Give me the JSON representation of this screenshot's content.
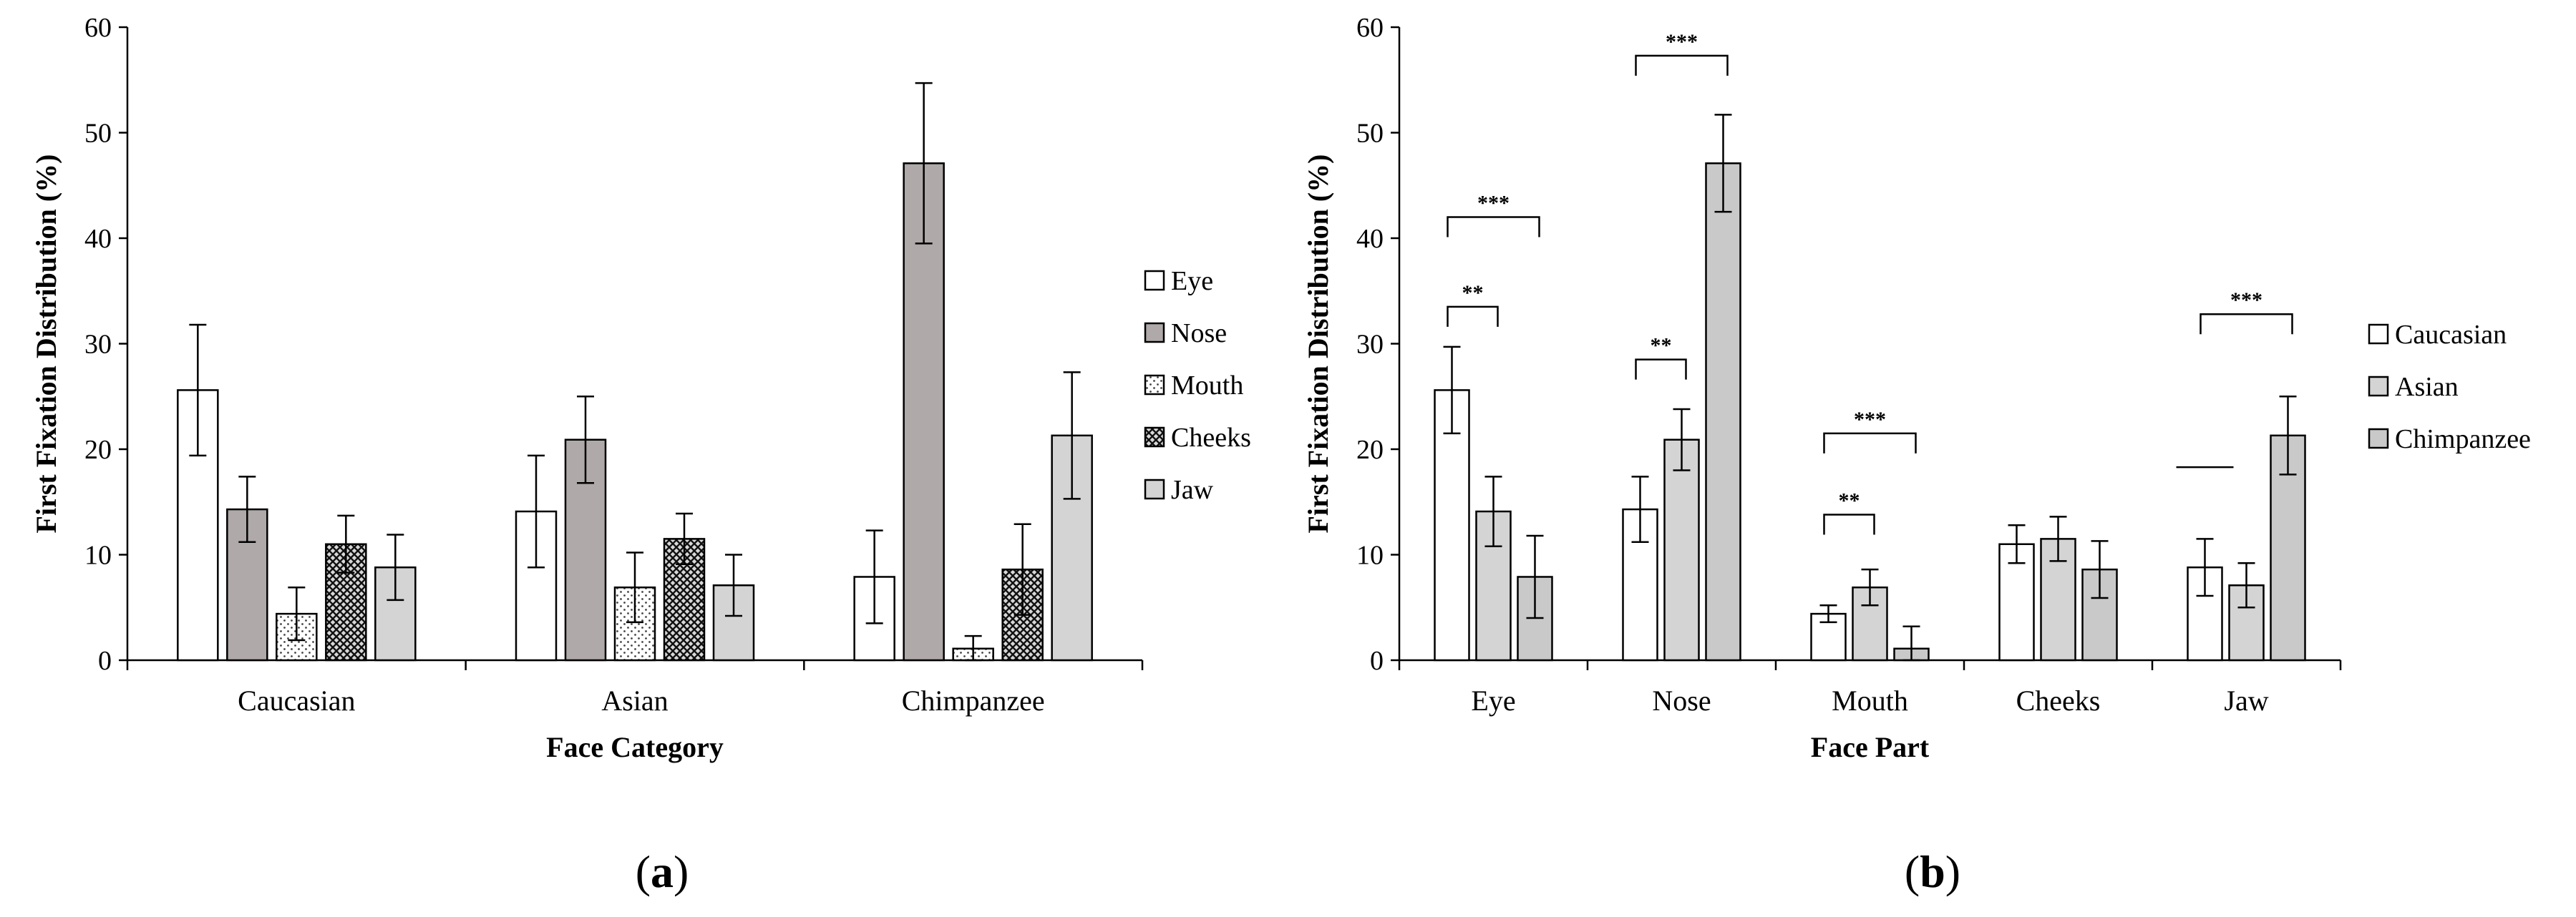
{
  "colors": {
    "white": "#ffffff",
    "dark_gray": "#afa9a9",
    "light_gray": "#d4d4d4",
    "mid_gray": "#c9c9c9",
    "black": "#000000"
  },
  "chart_data": [
    {
      "type": "bar",
      "panel_label": "a",
      "title": "",
      "xlabel": "Face Category",
      "ylabel": "First Fixation Distribution (%)",
      "ylim": [
        0,
        60
      ],
      "yticks": [
        "0",
        "10",
        "20",
        "30",
        "40",
        "50",
        "60"
      ],
      "categories": [
        "Caucasian",
        "Asian",
        "Chimpanzee"
      ],
      "legend_position": "right",
      "series": [
        {
          "name": "Eye",
          "pattern": "white",
          "values": [
            25.6,
            14.1,
            7.9
          ],
          "errors": [
            6.2,
            5.3,
            4.4
          ]
        },
        {
          "name": "Nose",
          "pattern": "dark_gray",
          "values": [
            14.3,
            20.9,
            47.1
          ],
          "errors": [
            3.1,
            4.1,
            7.6
          ]
        },
        {
          "name": "Mouth",
          "pattern": "dots",
          "values": [
            4.4,
            6.9,
            1.1
          ],
          "errors": [
            2.5,
            3.3,
            1.2
          ]
        },
        {
          "name": "Cheeks",
          "pattern": "crosshatch",
          "values": [
            11.0,
            11.5,
            8.6
          ],
          "errors": [
            2.7,
            2.4,
            4.3
          ]
        },
        {
          "name": "Jaw",
          "pattern": "light_gray",
          "values": [
            8.8,
            7.1,
            21.3
          ],
          "errors": [
            3.1,
            2.9,
            6.0
          ]
        }
      ]
    },
    {
      "type": "bar",
      "panel_label": "b",
      "title": "",
      "xlabel": "Face Part",
      "ylabel": "First Fixation Distribution (%)",
      "ylim": [
        0,
        60
      ],
      "yticks": [
        "0",
        "10",
        "20",
        "30",
        "40",
        "50",
        "60"
      ],
      "categories": [
        "Eye",
        "Nose",
        "Mouth",
        "Cheeks",
        "Jaw"
      ],
      "legend_position": "right",
      "series": [
        {
          "name": "Caucasian",
          "pattern": "white",
          "values": [
            25.6,
            14.3,
            4.4,
            11.0,
            8.8
          ],
          "errors": [
            4.1,
            3.1,
            0.8,
            1.8,
            2.7
          ]
        },
        {
          "name": "Asian",
          "pattern": "light_gray",
          "values": [
            14.1,
            20.9,
            6.9,
            11.5,
            7.1
          ],
          "errors": [
            3.3,
            2.9,
            1.7,
            2.1,
            2.1
          ]
        },
        {
          "name": "Chimpanzee",
          "pattern": "mid_gray",
          "values": [
            7.9,
            47.1,
            1.1,
            8.6,
            21.3
          ],
          "errors": [
            3.9,
            4.6,
            2.1,
            2.7,
            3.7
          ]
        }
      ],
      "annotations": [
        {
          "category": 0,
          "from": 0,
          "to": 1,
          "label": "**",
          "y": 33.5
        },
        {
          "category": 0,
          "from": 0,
          "to": 2,
          "label": "***",
          "y": 42.0
        },
        {
          "category": 1,
          "from": 0,
          "to": 1,
          "label": "**",
          "y": 28.5
        },
        {
          "category": 1,
          "from": 0,
          "to": 2,
          "label": "***",
          "y": 57.3
        },
        {
          "category": 2,
          "from": 0,
          "to": 1,
          "label": "**",
          "y": 13.8
        },
        {
          "category": 2,
          "from": 0,
          "to": 2,
          "label": "***",
          "y": 21.5
        },
        {
          "category": 4,
          "from": 0,
          "to": 2,
          "label": "***",
          "y": 32.8
        },
        {
          "category": 4,
          "from": 0,
          "to": 0,
          "label": "",
          "y": 18.3,
          "kind": "line"
        }
      ]
    }
  ],
  "panel_labels": {
    "a": {
      "open": "(",
      "letter": "a",
      "close": ")"
    },
    "b": {
      "open": "(",
      "letter": "b",
      "close": ")"
    }
  }
}
